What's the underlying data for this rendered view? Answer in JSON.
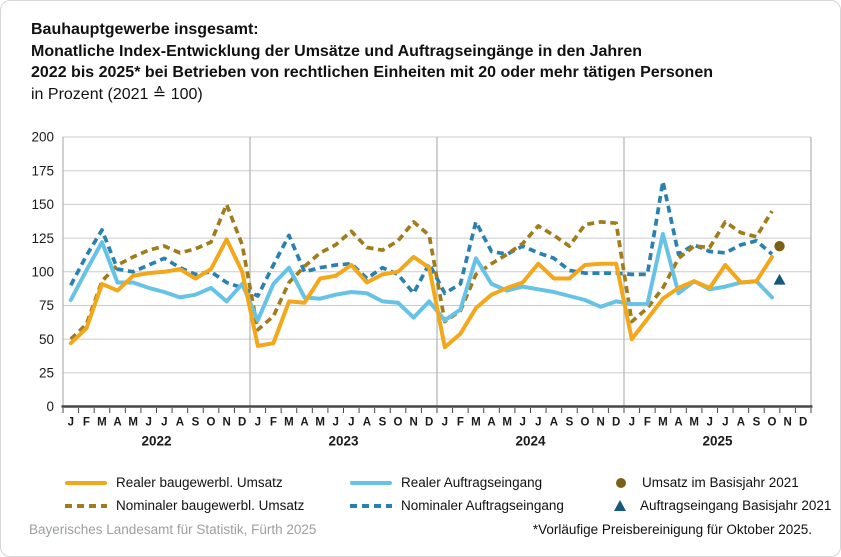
{
  "title": {
    "line1": "Bauhauptgewerbe insgesamt:",
    "line2": "Monatliche Index-Entwicklung der Umsätze und Auftragseingänge in den Jahren",
    "line3": "2022 bis 2025* bei Betrieben von rechtlichen Einheiten mit 20 oder mehr tätigen Personen",
    "line4": "in Prozent (2021 ≙ 100)"
  },
  "legend": {
    "items": [
      {
        "label": "Realer baugewerbl. Umsatz",
        "style": "solid-line",
        "color": "#F3A71B"
      },
      {
        "label": "Realer Auftragseingang",
        "style": "solid-line",
        "color": "#66C3E6"
      },
      {
        "label": "Umsatz im Basisjahr 2021",
        "style": "circle",
        "color": "#7A6118"
      },
      {
        "label": "Nominaler baugewerbl. Umsatz",
        "style": "dashed-line",
        "color": "#A17C1C"
      },
      {
        "label": "Nominaler Auftragseingang",
        "style": "dashed-line",
        "color": "#2A81B0"
      },
      {
        "label": "Auftragseingang Basisjahr 2021",
        "style": "triangle",
        "color": "#14587B"
      }
    ]
  },
  "footer": {
    "source": "Bayerisches Landesamt für Statistik, Fürth 2025",
    "note": "*Vorläufige Preisbereinigung für Oktober 2025."
  },
  "colors": {
    "grid": "#cbcbcb",
    "year_separator": "#b2b2b2",
    "axis": "#474747",
    "text": "#1a1a1a"
  },
  "chart_data": {
    "type": "line",
    "title": "Monatliche Index-Entwicklung der Umsätze und Auftragseingänge 2022 bis 2025, Bauhauptgewerbe insgesamt (2021 = 100)",
    "ylabel": "Index (2021 = 100)",
    "ylim": [
      0,
      200
    ],
    "ytick_step": 25,
    "grid": true,
    "legend_position": "bottom",
    "years": [
      "2022",
      "2023",
      "2024",
      "2025"
    ],
    "month_labels": [
      "J",
      "F",
      "M",
      "A",
      "M",
      "J",
      "J",
      "A",
      "S",
      "O",
      "N",
      "D"
    ],
    "n_points": 46,
    "series": [
      {
        "name": "Realer baugewerbl. Umsatz",
        "style": "solid",
        "color": "#F3A71B",
        "values": [
          47,
          58,
          91,
          86,
          97,
          99,
          100,
          102,
          95,
          102,
          124,
          100,
          45,
          47,
          78,
          77,
          95,
          97,
          105,
          92,
          98,
          100,
          111,
          103,
          44,
          54,
          73,
          83,
          88,
          92,
          106,
          95,
          95,
          105,
          106,
          106,
          50,
          65,
          80,
          88,
          93,
          88,
          105,
          92,
          93,
          111
        ]
      },
      {
        "name": "Nominaler baugewerbl. Umsatz",
        "style": "dashed",
        "color": "#A17C1C",
        "values": [
          50,
          61,
          93,
          105,
          111,
          116,
          119,
          114,
          117,
          122,
          150,
          120,
          57,
          67,
          92,
          104,
          114,
          120,
          130,
          118,
          116,
          123,
          137,
          127,
          63,
          71,
          98,
          106,
          113,
          121,
          134,
          127,
          119,
          135,
          137,
          136,
          63,
          73,
          88,
          110,
          119,
          118,
          137,
          129,
          126,
          145
        ]
      },
      {
        "name": "Realer Auftragseingang",
        "style": "solid",
        "color": "#66C3E6",
        "values": [
          79,
          101,
          122,
          92,
          92,
          88,
          85,
          81,
          83,
          88,
          78,
          91,
          64,
          91,
          103,
          81,
          80,
          83,
          85,
          84,
          78,
          77,
          66,
          78,
          64,
          72,
          110,
          91,
          86,
          89,
          87,
          85,
          82,
          79,
          74,
          78,
          76,
          76,
          128,
          84,
          93,
          87,
          89,
          92,
          93,
          81
        ]
      },
      {
        "name": "Nominaler Auftragseingang",
        "style": "dashed",
        "color": "#2A81B0",
        "values": [
          90,
          112,
          131,
          102,
          100,
          105,
          110,
          103,
          98,
          100,
          92,
          88,
          82,
          105,
          127,
          100,
          103,
          105,
          106,
          95,
          103,
          98,
          84,
          106,
          84,
          91,
          137,
          115,
          113,
          119,
          114,
          110,
          101,
          99,
          99,
          99,
          98,
          98,
          167,
          113,
          120,
          115,
          114,
          120,
          123,
          113
        ]
      }
    ],
    "markers": [
      {
        "name": "Umsatz im Basisjahr 2021",
        "shape": "circle",
        "color": "#7A6118",
        "value": 119
      },
      {
        "name": "Auftragseingang Basisjahr 2021",
        "shape": "triangle",
        "color": "#14587B",
        "value": 94
      }
    ]
  }
}
